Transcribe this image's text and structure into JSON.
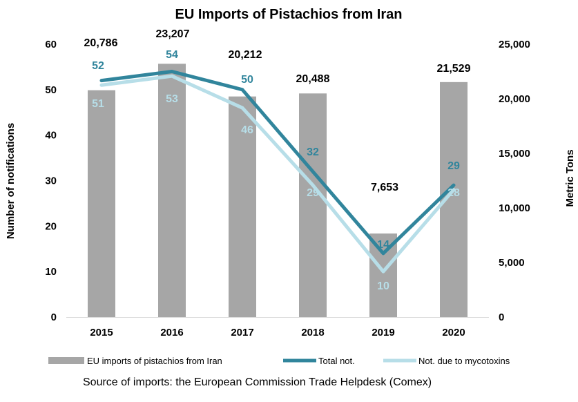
{
  "chart_data": {
    "type": "bar",
    "title": "EU Imports of Pistachios from Iran",
    "ylabel_left": "Number of notifications",
    "ylabel_right": "Metric Tons",
    "categories": [
      "2015",
      "2016",
      "2017",
      "2018",
      "2019",
      "2020"
    ],
    "ylim_left": [
      0,
      60
    ],
    "ylim_right": [
      0,
      25000
    ],
    "yticks_left": [
      "0",
      "10",
      "20",
      "30",
      "40",
      "50",
      "60"
    ],
    "yticks_right": [
      "0",
      "5,000",
      "10,000",
      "15,000",
      "20,000",
      "25,000"
    ],
    "yticks_left_values": [
      0,
      10,
      20,
      30,
      40,
      50,
      60
    ],
    "yticks_right_values": [
      0,
      5000,
      10000,
      15000,
      20000,
      25000
    ],
    "grid": false,
    "legend_position": "bottom",
    "series": [
      {
        "name": "EU imports of pistachios from Iran",
        "type": "bar",
        "axis": "right",
        "color": "#a6a6a6",
        "values": [
          20786,
          23207,
          20212,
          20488,
          7653,
          21529
        ],
        "labels": [
          "20,786",
          "23,207",
          "20,212",
          "20,488",
          "7,653",
          "21,529"
        ]
      },
      {
        "name": "Total not.",
        "type": "line",
        "axis": "left",
        "color": "#31859c",
        "values": [
          52,
          54,
          50,
          32,
          14,
          29
        ],
        "labels": [
          "52",
          "54",
          "50",
          "32",
          "14",
          "29"
        ]
      },
      {
        "name": "Not. due to mycotoxins",
        "type": "line",
        "axis": "left",
        "color": "#b7dee8",
        "values": [
          51,
          53,
          46,
          29,
          10,
          28
        ],
        "labels": [
          "51",
          "53",
          "46",
          "29",
          "10",
          "28"
        ]
      }
    ]
  },
  "source_note": "Source of imports: the European Commission Trade Helpdesk (Comex)"
}
